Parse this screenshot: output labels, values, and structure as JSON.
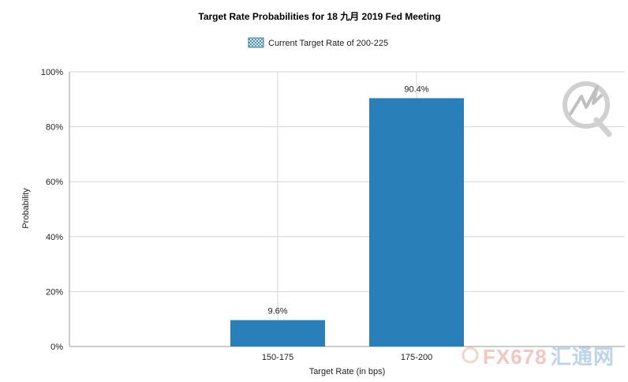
{
  "chart_data": {
    "type": "bar",
    "title": "Target Rate Probabilities for 18 九月 2019  Fed Meeting",
    "xlabel": "Target Rate (in bps)",
    "ylabel": "Probability",
    "categories": [
      "",
      "150-175",
      "175-200",
      ""
    ],
    "series": [
      {
        "name": "Current Target Rate of 200-225",
        "values": [
          null,
          9.6,
          90.4,
          null
        ],
        "labels": [
          "",
          "9.6%",
          "90.4%",
          ""
        ],
        "color": "#2980b9"
      }
    ],
    "ylim": [
      0,
      100
    ],
    "yticks": [
      0,
      20,
      40,
      60,
      80,
      100
    ],
    "ytick_labels": [
      "0%",
      "20%",
      "40%",
      "60%",
      "80%",
      "100%"
    ],
    "grid": true,
    "legend_position": "top-center"
  },
  "colors": {
    "grid": "#d4d4d4",
    "axis": "#9a9a9a",
    "bar": "#2980b9",
    "watermark_logo": "#c8c8c8",
    "watermark_fx": "#f5c6c0",
    "watermark_cn": "#bcd4ee"
  },
  "watermark": {
    "fx_text": "FX678",
    "cn_text": "汇通网"
  }
}
